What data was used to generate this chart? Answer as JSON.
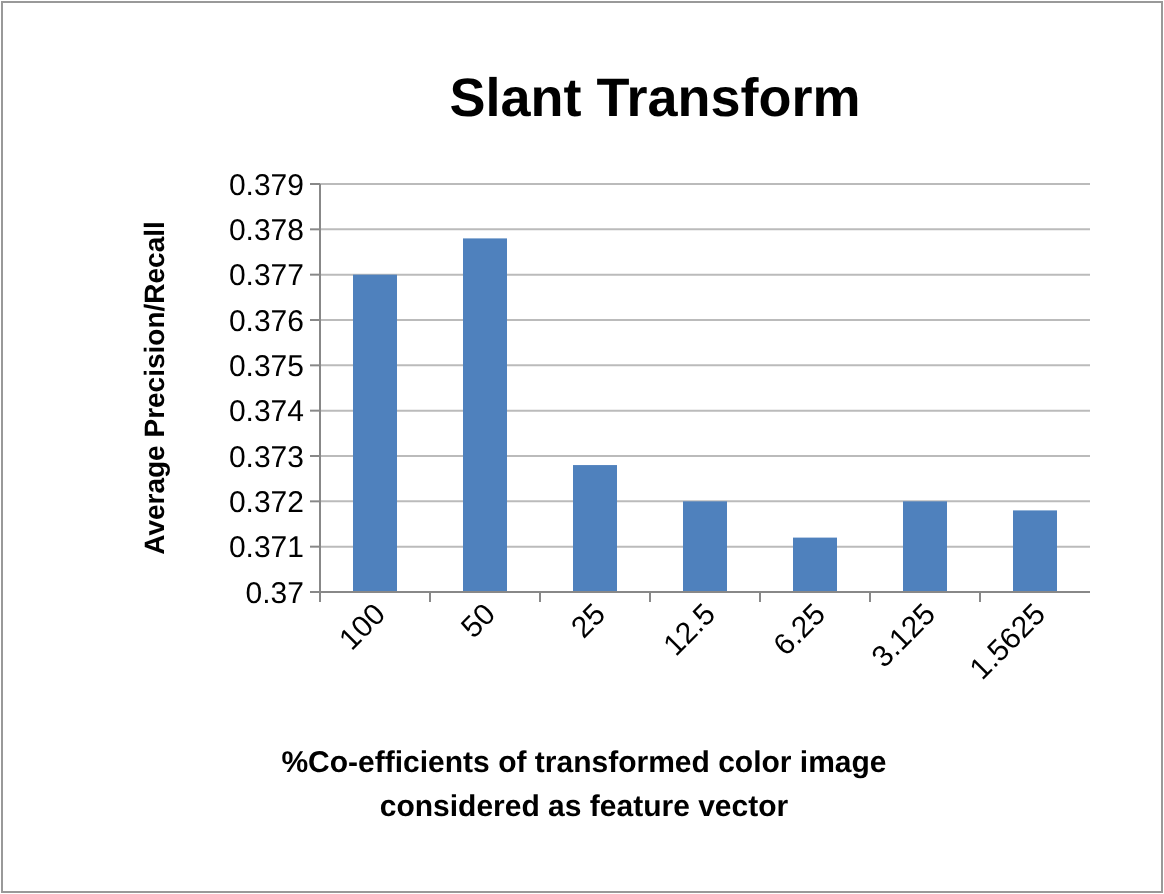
{
  "chart_data": {
    "type": "bar",
    "title": "Slant Transform",
    "xlabel": "%Co-efficients of transformed color image considered as feature vector",
    "ylabel": "Average Precision/Recall",
    "categories": [
      "100",
      "50",
      "25",
      "12.5",
      "6.25",
      "3.125",
      "1.5625"
    ],
    "values": [
      0.377,
      0.3778,
      0.3728,
      0.372,
      0.3712,
      0.372,
      0.3718
    ],
    "color": "#4f81bd",
    "ylim": [
      0.37,
      0.379
    ],
    "yticks": [
      {
        "value": 0.37,
        "label": "0.37"
      },
      0.371,
      0.372,
      0.373,
      0.374,
      0.375,
      0.376,
      0.377,
      0.378,
      0.379
    ],
    "grid": "y"
  }
}
